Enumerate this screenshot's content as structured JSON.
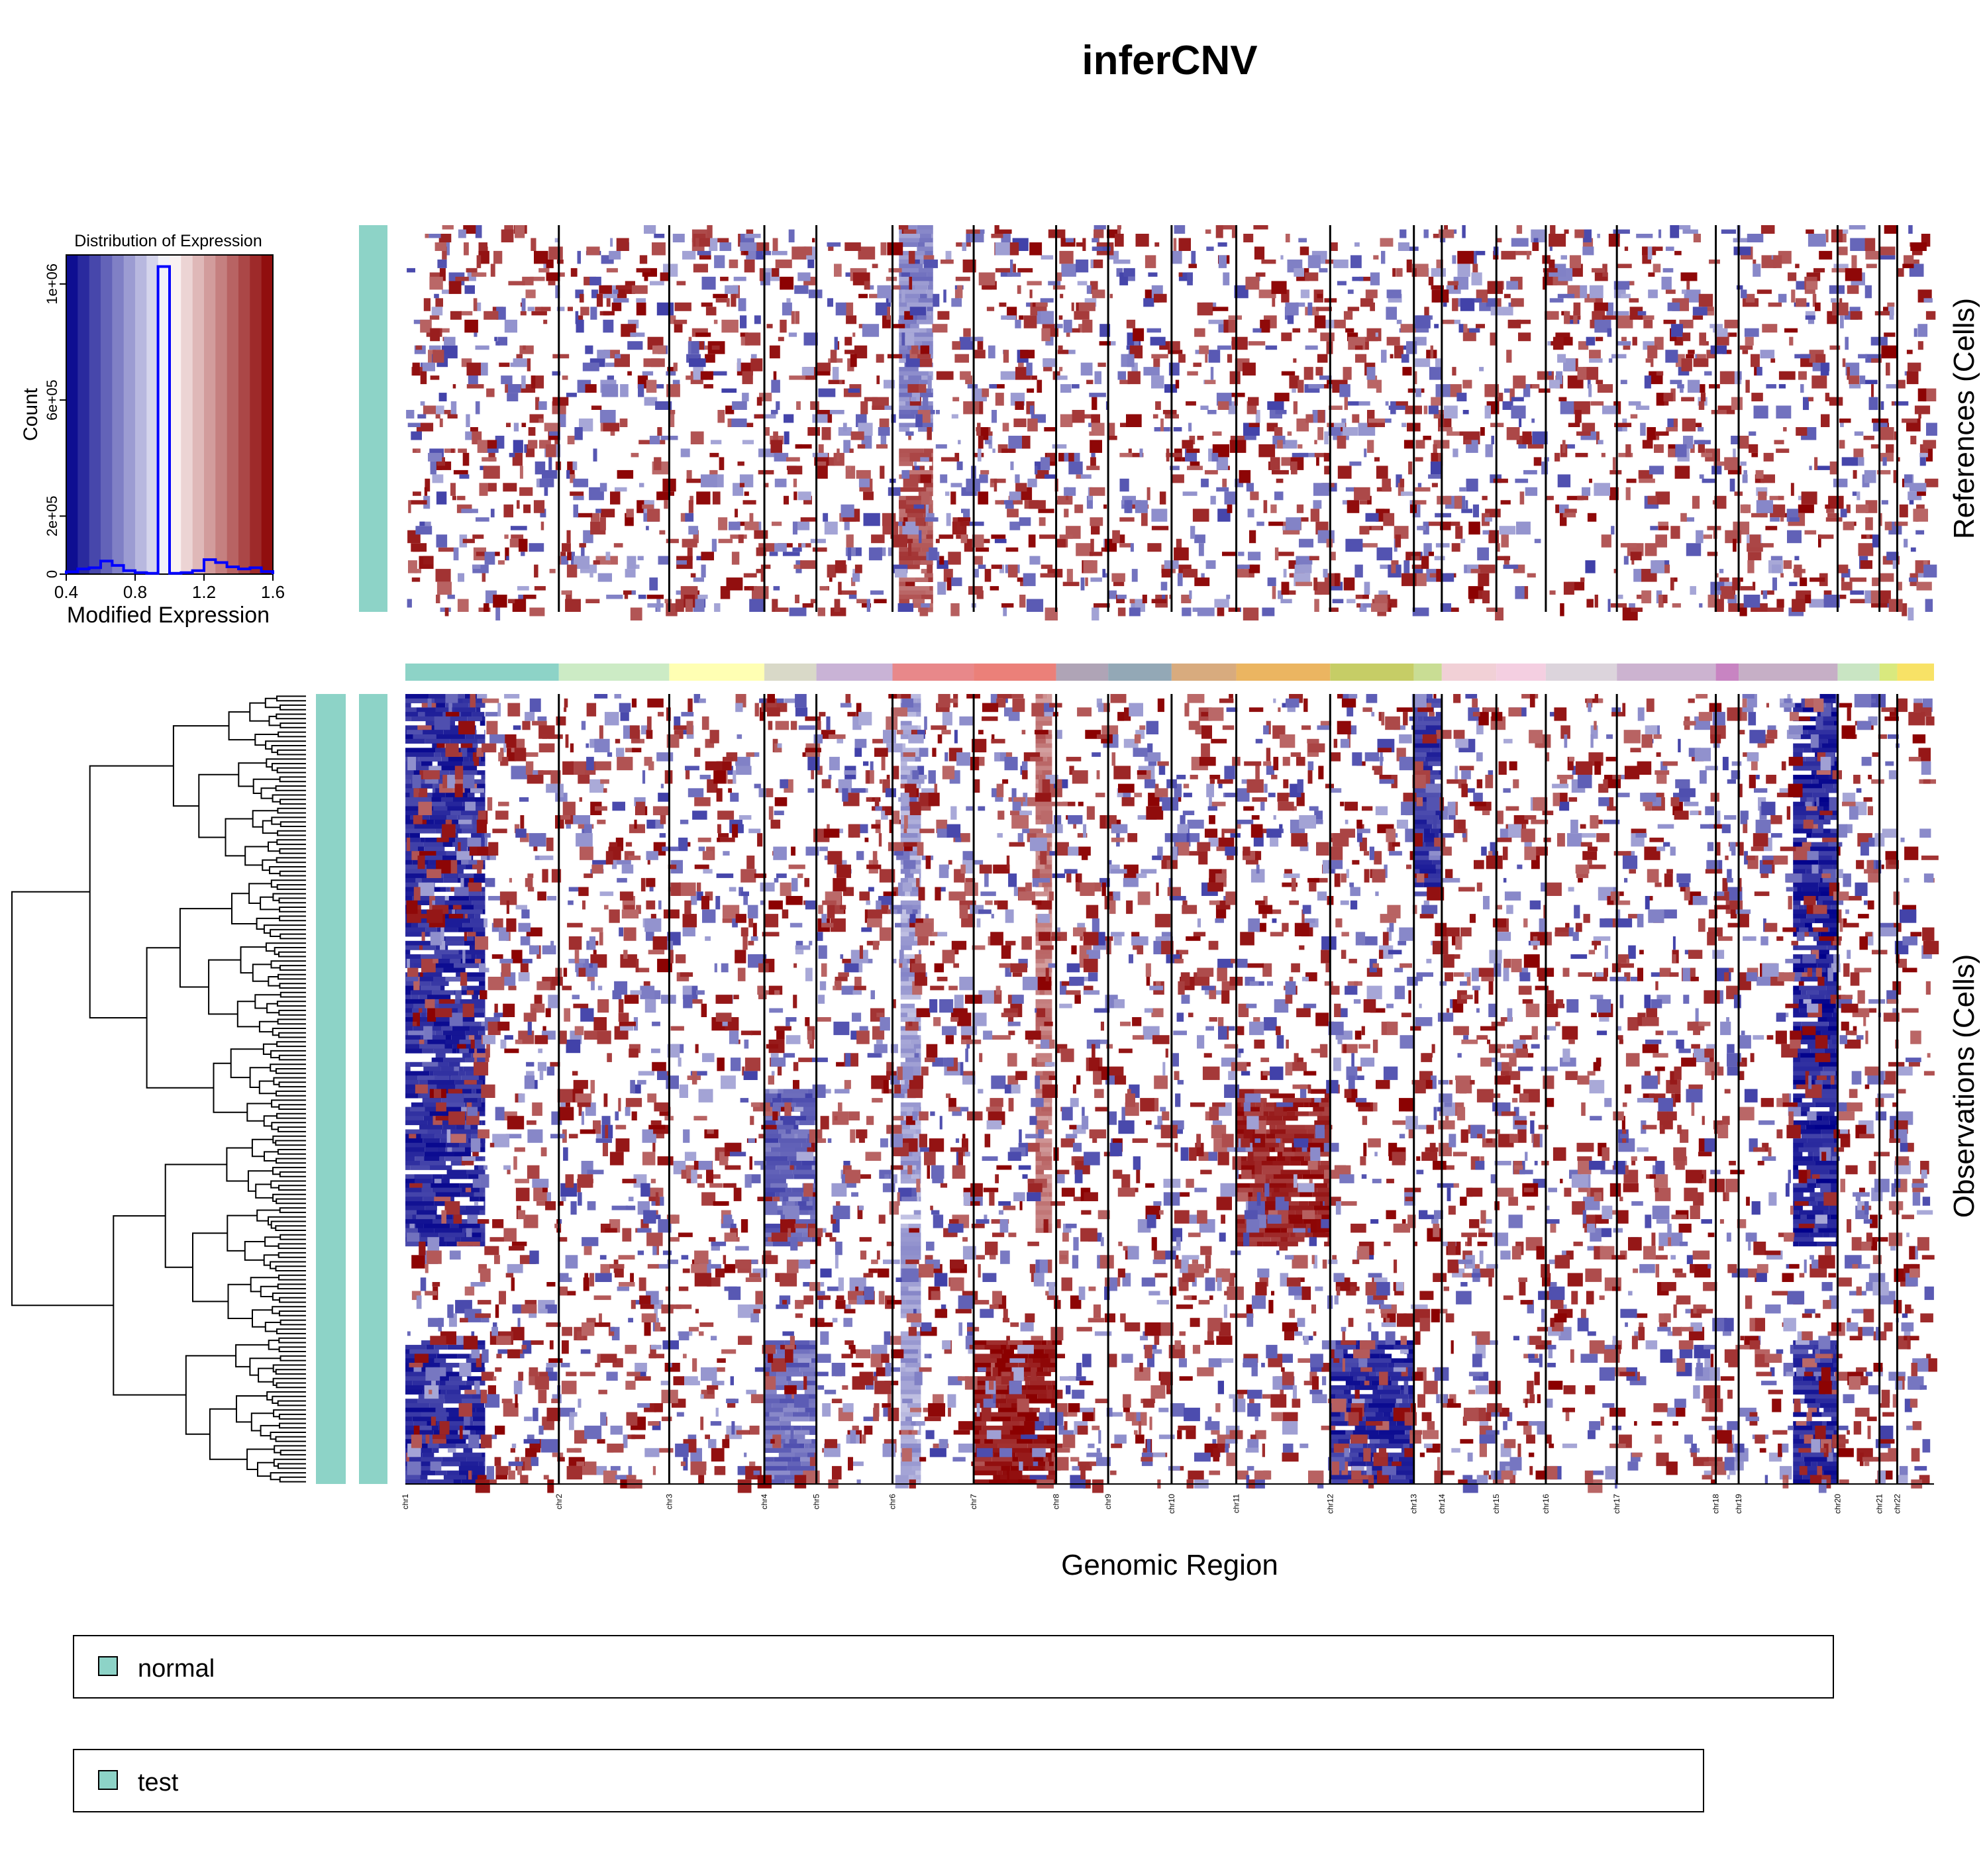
{
  "chart_data": {
    "type": "heatmap",
    "title": "inferCNV",
    "xlabel": "Genomic Region",
    "references_label": "References (Cells)",
    "observations_label": "Observations (Cells)",
    "chromosomes": [
      {
        "name": "chr1",
        "genes": 121,
        "color": "#8DD3C7"
      },
      {
        "name": "chr2",
        "genes": 87,
        "color": "#CCEBC5"
      },
      {
        "name": "chr3",
        "genes": 75,
        "color": "#FFFFB3"
      },
      {
        "name": "chr4",
        "genes": 41,
        "color": "#D9D9C8"
      },
      {
        "name": "chr5",
        "genes": 60,
        "color": "#C9B3D6"
      },
      {
        "name": "chr6",
        "genes": 64,
        "color": "#E8888A"
      },
      {
        "name": "chr7",
        "genes": 65,
        "color": "#EB8079"
      },
      {
        "name": "chr8",
        "genes": 41,
        "color": "#AFA4B6"
      },
      {
        "name": "chr9",
        "genes": 50,
        "color": "#93A8B6"
      },
      {
        "name": "chr10",
        "genes": 51,
        "color": "#D8AB7E"
      },
      {
        "name": "chr11",
        "genes": 74,
        "color": "#EBB561"
      },
      {
        "name": "chr12",
        "genes": 66,
        "color": "#C6CD66"
      },
      {
        "name": "chr13",
        "genes": 22,
        "color": "#C9DD94"
      },
      {
        "name": "chr14",
        "genes": 43,
        "color": "#F1D0D6"
      },
      {
        "name": "chr15",
        "genes": 39,
        "color": "#F4CFE1"
      },
      {
        "name": "chr16",
        "genes": 56,
        "color": "#DCD4DC"
      },
      {
        "name": "chr17",
        "genes": 78,
        "color": "#CCB3D0"
      },
      {
        "name": "chr18",
        "genes": 18,
        "color": "#C884C2"
      },
      {
        "name": "chr19",
        "genes": 78,
        "color": "#C6AFC6"
      },
      {
        "name": "chr20",
        "genes": 33,
        "color": "#C9E5C3"
      },
      {
        "name": "chr21",
        "genes": 14,
        "color": "#D9E97E"
      },
      {
        "name": "chr22",
        "genes": 29,
        "color": "#F8E266"
      }
    ],
    "color_scale": {
      "low": 0.4,
      "mid": 1.0,
      "high": 1.6,
      "colors": [
        "#00008B",
        "#FFFFFF",
        "#8B0000"
      ]
    },
    "references": {
      "n_cells": 90,
      "events": [
        {
          "chr": "chr6",
          "start": 0.08,
          "end": 0.5,
          "rows": [
            0,
            48
          ],
          "value": 0.72
        },
        {
          "chr": "chr6",
          "start": 0.08,
          "end": 0.5,
          "rows": [
            52,
            90
          ],
          "value": 1.4
        }
      ]
    },
    "observations": {
      "n_cells": 176,
      "events": [
        {
          "chr": "chr1",
          "start": 0.0,
          "end": 0.52,
          "rows": [
            0,
            123
          ],
          "value": 0.5
        },
        {
          "chr": "chr1",
          "start": 0.0,
          "end": 0.52,
          "rows": [
            144,
            176
          ],
          "value": 0.5
        },
        {
          "chr": "chr4",
          "start": 0.0,
          "end": 1.0,
          "rows": [
            88,
            123
          ],
          "value": 0.62
        },
        {
          "chr": "chr4",
          "start": 0.0,
          "end": 1.0,
          "rows": [
            144,
            176
          ],
          "value": 0.66
        },
        {
          "chr": "chr7",
          "start": 0.0,
          "end": 1.0,
          "rows": [
            144,
            176
          ],
          "value": 1.55
        },
        {
          "chr": "chr11",
          "start": 0.0,
          "end": 1.0,
          "rows": [
            88,
            123
          ],
          "value": 1.52
        },
        {
          "chr": "chr12",
          "start": 0.0,
          "end": 1.0,
          "rows": [
            144,
            176
          ],
          "value": 0.5
        },
        {
          "chr": "chr13",
          "start": 0.0,
          "end": 1.0,
          "rows": [
            0,
            45
          ],
          "value": 0.52
        },
        {
          "chr": "chr19",
          "start": 0.55,
          "end": 1.0,
          "rows": [
            0,
            123
          ],
          "value": 0.48
        },
        {
          "chr": "chr19",
          "start": 0.55,
          "end": 1.0,
          "rows": [
            144,
            176
          ],
          "value": 0.5
        },
        {
          "chr": "chr6",
          "start": 0.1,
          "end": 0.35,
          "rows": [
            0,
            176
          ],
          "value": 0.78
        },
        {
          "chr": "chr7",
          "start": 0.75,
          "end": 0.95,
          "rows": [
            0,
            120
          ],
          "value": 1.3
        }
      ]
    },
    "histogram": {
      "title": "Distribution of Expression",
      "xlabel": "Modified Expression",
      "ylabel": "Count",
      "xlim": [
        0.4,
        1.6
      ],
      "ylim": [
        0,
        1100000
      ],
      "x_ticks": [
        "0.4",
        "0.8",
        "1.2",
        "1.6"
      ],
      "y_ticks": [
        "0",
        "2e+05",
        "6e+05",
        "1e+06"
      ],
      "y_tick_values": [
        0,
        200000,
        600000,
        1000000
      ],
      "bin_edges": [
        0.4,
        0.467,
        0.533,
        0.6,
        0.667,
        0.733,
        0.8,
        0.867,
        0.933,
        1.0,
        1.067,
        1.133,
        1.2,
        1.267,
        1.333,
        1.4,
        1.467,
        1.533,
        1.6
      ],
      "counts": [
        8000,
        18000,
        22000,
        45000,
        30000,
        12000,
        5000,
        3000,
        1060000,
        3000,
        5000,
        12000,
        50000,
        40000,
        25000,
        18000,
        22000,
        9000
      ]
    },
    "dendrogram": {
      "leaves": 176,
      "groups": [
        "normal"
      ]
    },
    "annotation_tracks": [
      "normal",
      "test"
    ]
  },
  "legend": {
    "items": [
      {
        "label": "normal",
        "color": "#8DD3C7"
      },
      {
        "label": "test",
        "color": "#8DD3C7"
      }
    ]
  }
}
